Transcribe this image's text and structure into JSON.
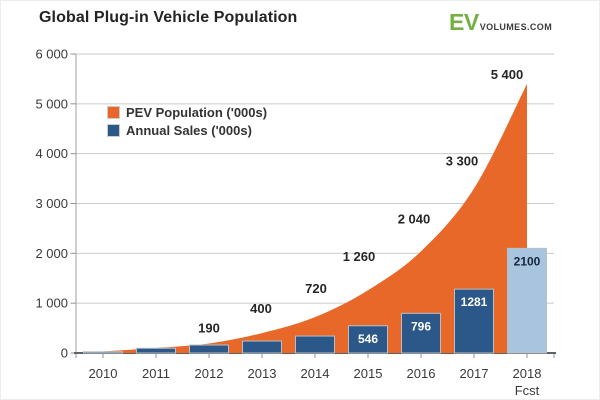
{
  "header": {
    "title": "Global Plug-in Vehicle Population",
    "logo_ev": "EV",
    "logo_rest": "VOLUMES.COM",
    "logo_ev_color": "#76b043"
  },
  "legend": [
    {
      "label": "PEV Population ('000s)",
      "color": "#e8682a"
    },
    {
      "label": "Annual Sales ('000s)",
      "color": "#2b5789"
    }
  ],
  "chart_data": {
    "type": "area+bar",
    "title": "Global Plug-in Vehicle Population",
    "categories": [
      "2010",
      "2011",
      "2012",
      "2013",
      "2014",
      "2015",
      "2016",
      "2017",
      "2018"
    ],
    "forecast_note": "Fcst",
    "series": [
      {
        "name": "PEV Population ('000s)",
        "type": "area",
        "color": "#e8682a",
        "values": [
          30,
          100,
          190,
          400,
          720,
          1260,
          2040,
          3300,
          5400
        ],
        "point_labels": [
          "",
          "",
          "190",
          "400",
          "720",
          "1 260",
          "2 040",
          "3 300",
          "5 400"
        ]
      },
      {
        "name": "Annual Sales ('000s)",
        "type": "bar",
        "color": "#2b5789",
        "forecast_color": "#a8c4de",
        "values": [
          25,
          95,
          160,
          240,
          340,
          546,
          796,
          1281,
          2100
        ],
        "bar_labels": [
          "",
          "",
          "",
          "",
          "",
          "546",
          "796",
          "1281",
          "2100"
        ],
        "bar_label_color": "#ffffff",
        "forecast_bar_label_color": "#16273c"
      }
    ],
    "ylim": [
      0,
      6000
    ],
    "ytick_labels": [
      "0",
      "1 000",
      "2 000",
      "3 000",
      "4 000",
      "5 000",
      "6 000"
    ],
    "grid": true,
    "legend_position": "top-left-inside"
  }
}
